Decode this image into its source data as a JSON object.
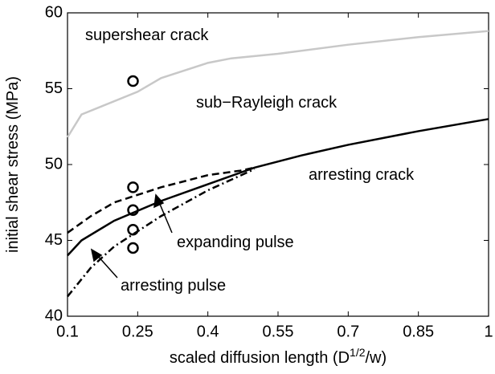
{
  "chart_data": {
    "type": "line",
    "xlabel": {
      "text": "scaled diffusion length (D",
      "superscript": "1/2",
      "suffix": "/w)"
    },
    "ylabel": "initial shear stress (MPa)",
    "xlim": [
      0.1,
      1
    ],
    "ylim": [
      40,
      60
    ],
    "xticks": [
      0.1,
      0.25,
      0.4,
      0.55,
      0.7,
      0.85,
      1
    ],
    "yticks": [
      40,
      45,
      50,
      55,
      60
    ],
    "series": [
      {
        "color": "#c8c8c8",
        "dash": "solid",
        "x": [
          0.1,
          0.13,
          0.25,
          0.3,
          0.4,
          0.45,
          0.55,
          0.7,
          0.85,
          1
        ],
        "values": [
          51.8,
          53.3,
          54.8,
          55.7,
          56.7,
          57.0,
          57.3,
          57.9,
          58.4,
          58.8
        ]
      },
      {
        "color": "#000000",
        "dash": "solid",
        "x": [
          0.1,
          0.13,
          0.2,
          0.3,
          0.4,
          0.5,
          0.6,
          0.7,
          0.85,
          1
        ],
        "values": [
          44,
          45,
          46.3,
          47.6,
          48.7,
          49.8,
          50.6,
          51.3,
          52.2,
          53
        ]
      },
      {
        "color": "#000000",
        "dash": "dashed",
        "x": [
          0.1,
          0.15,
          0.2,
          0.3,
          0.4,
          0.47,
          0.5
        ],
        "values": [
          45.5,
          46.6,
          47.5,
          48.5,
          49.3,
          49.6,
          49.8
        ]
      },
      {
        "color": "#000000",
        "dash": "dashdot",
        "x": [
          0.1,
          0.15,
          0.2,
          0.3,
          0.4,
          0.5
        ],
        "values": [
          41.3,
          43.2,
          44.6,
          46.6,
          48.3,
          49.7
        ]
      }
    ],
    "points": {
      "color": "#000000",
      "x": [
        0.24,
        0.24,
        0.24,
        0.24,
        0.24
      ],
      "values": [
        55.5,
        48.5,
        47,
        45.7,
        44.5
      ]
    },
    "annotations": [
      "supershear crack",
      "sub−Rayleigh crack",
      "arresting crack",
      "expanding pulse",
      "arresting pulse"
    ]
  }
}
